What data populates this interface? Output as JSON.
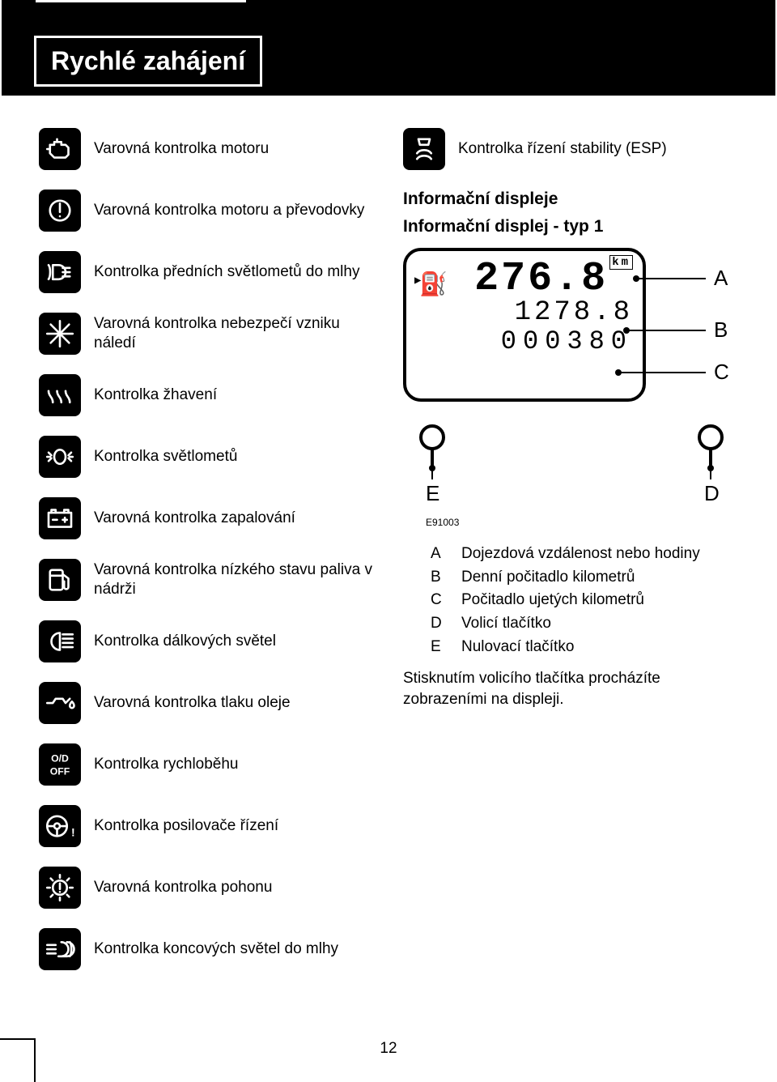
{
  "header": {
    "title": "Rychlé zahájení"
  },
  "page_number": "12",
  "left_items": [
    {
      "icon": "engine",
      "text": "Varovná kontrolka motoru"
    },
    {
      "icon": "exclaim-circle",
      "text": "Varovná kontrolka motoru a převodovky"
    },
    {
      "icon": "fog-front",
      "text": "Kontrolka předních světlometů do mlhy"
    },
    {
      "icon": "snowflake",
      "text": "Varovná kontrolka nebezpečí vzniku náledí"
    },
    {
      "icon": "glow",
      "text": "Kontrolka žhavení"
    },
    {
      "icon": "headlamp",
      "text": "Kontrolka světlometů"
    },
    {
      "icon": "battery",
      "text": "Varovná kontrolka zapalování"
    },
    {
      "icon": "fuel",
      "text": "Varovná kontrolka nízkého stavu paliva v nádrži"
    },
    {
      "icon": "highbeam",
      "text": "Kontrolka dálkových světel"
    },
    {
      "icon": "oil",
      "text": "Varovná kontrolka tlaku oleje"
    },
    {
      "icon": "od-off",
      "text": "Kontrolka rychloběhu"
    },
    {
      "icon": "steering",
      "text": "Kontrolka posilovače řízení"
    },
    {
      "icon": "gear-exclaim",
      "text": "Varovná kontrolka pohonu"
    },
    {
      "icon": "fog-rear",
      "text": "Kontrolka koncových světel do mlhy"
    }
  ],
  "right": {
    "first_item": {
      "icon": "esp",
      "text": "Kontrolka řízení stability (ESP)"
    },
    "section_title": "Informační displeje",
    "section_sub": "Informační displej - typ 1",
    "display": {
      "line1": "276.8",
      "line1_unit": "km",
      "line2": "1278.8",
      "line3": "000380",
      "label_A": "A",
      "label_B": "B",
      "label_C": "C",
      "label_D": "D",
      "label_E": "E"
    },
    "diagram_id": "E91003",
    "legend": [
      {
        "k": "A",
        "v": "Dojezdová vzdálenost nebo hodiny"
      },
      {
        "k": "B",
        "v": "Denní počitadlo kilometrů"
      },
      {
        "k": "C",
        "v": "Počitadlo ujetých kilometrů"
      },
      {
        "k": "D",
        "v": "Volicí tlačítko"
      },
      {
        "k": "E",
        "v": "Nulovací tlačítko"
      }
    ],
    "note": "Stisknutím volicího tlačítka procházíte zobrazeními na displeji."
  },
  "colors": {
    "bg": "#ffffff",
    "fg": "#000000"
  }
}
